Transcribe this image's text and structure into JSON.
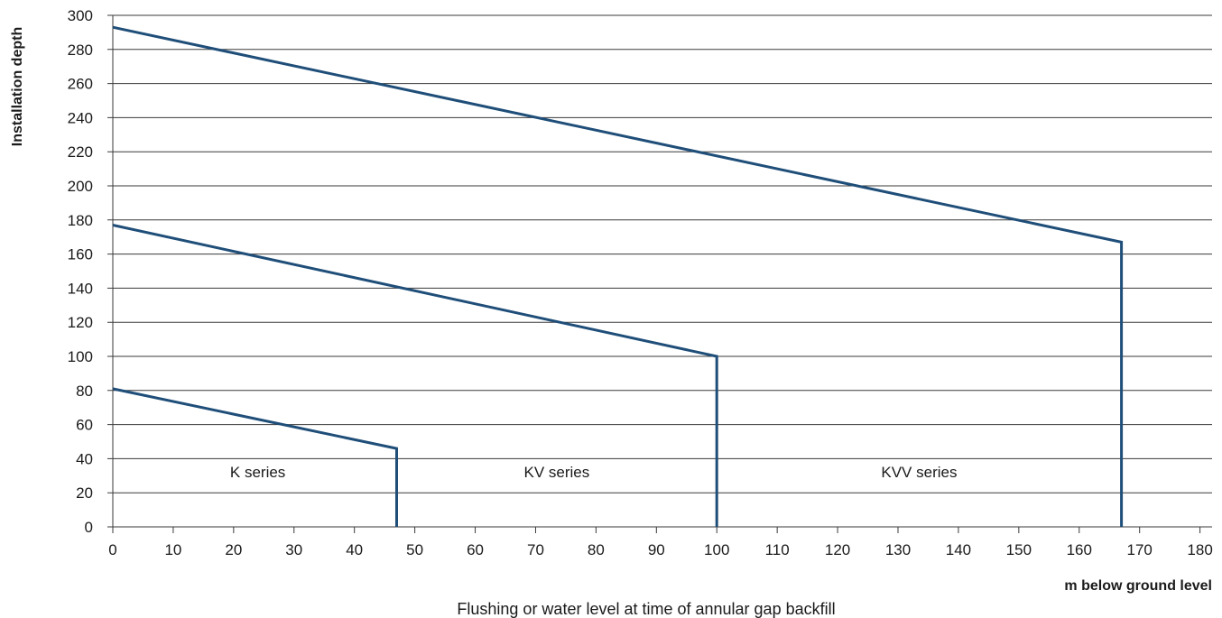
{
  "chart_data": {
    "type": "line",
    "title": "",
    "ylabel": "Installation depth",
    "x_unit_label": "m below ground level",
    "xlabel": "Flushing or water level at time of annular gap backfill",
    "xlim": [
      0,
      182
    ],
    "ylim": [
      0,
      300
    ],
    "x_ticks": [
      0,
      10,
      20,
      30,
      40,
      50,
      60,
      70,
      80,
      90,
      100,
      110,
      120,
      130,
      140,
      150,
      160,
      170,
      180
    ],
    "y_ticks": [
      0,
      20,
      40,
      60,
      80,
      100,
      120,
      140,
      160,
      180,
      200,
      220,
      240,
      260,
      280,
      300
    ],
    "grid": "horizontal",
    "line_color": "#1f4e79",
    "series": [
      {
        "name": "K series",
        "points": [
          [
            0,
            81
          ],
          [
            47,
            46
          ],
          [
            47,
            0
          ]
        ],
        "label_x": 24,
        "label_y": 29
      },
      {
        "name": "KV series",
        "points": [
          [
            0,
            177
          ],
          [
            100,
            100
          ],
          [
            100,
            0
          ]
        ],
        "label_x": 73.5,
        "label_y": 29
      },
      {
        "name": "KVV series",
        "points": [
          [
            0,
            293
          ],
          [
            167,
            167
          ],
          [
            167,
            0
          ]
        ],
        "label_x": 133.5,
        "label_y": 29
      }
    ]
  }
}
